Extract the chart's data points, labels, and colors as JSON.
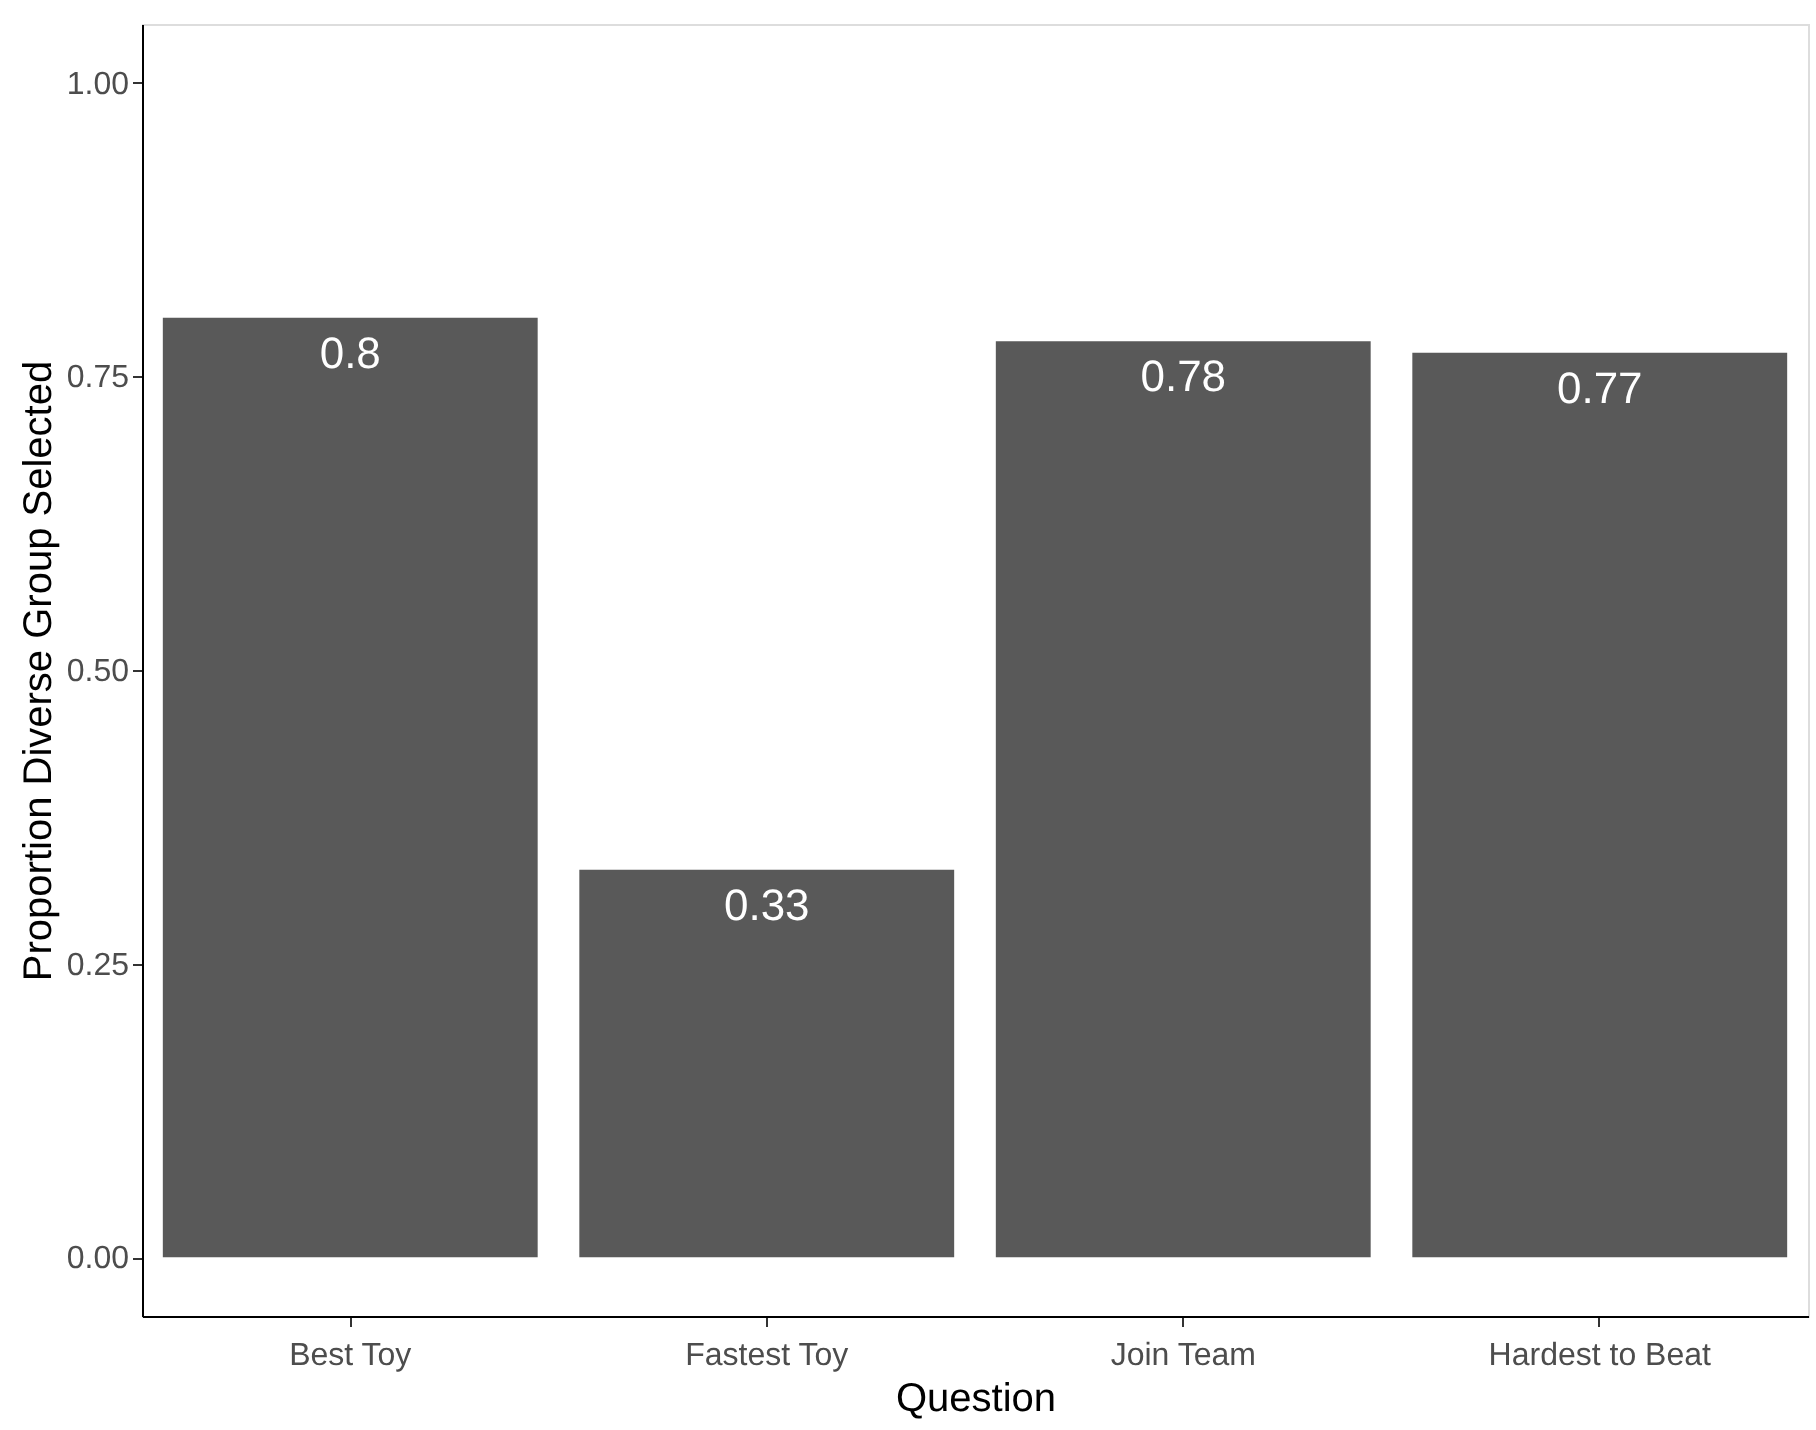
{
  "chart_data": {
    "type": "bar",
    "xlabel": "Question",
    "ylabel": "Proportion Diverse Group Selected",
    "categories": [
      "Best Toy",
      "Fastest Toy",
      "Join Team",
      "Hardest to Beat"
    ],
    "values": [
      0.8,
      0.33,
      0.78,
      0.77
    ],
    "color": "#595959",
    "ylim": [
      -0.05,
      1.05
    ],
    "yticks": [
      {
        "value": 0,
        "label": "0.00"
      },
      {
        "value": 0.25,
        "label": "0.25"
      },
      {
        "value": 0.5,
        "label": "0.50"
      },
      {
        "value": 0.75,
        "label": "0.75"
      },
      {
        "value": 1,
        "label": "1.00"
      }
    ],
    "data_labels": true,
    "grid": false
  }
}
